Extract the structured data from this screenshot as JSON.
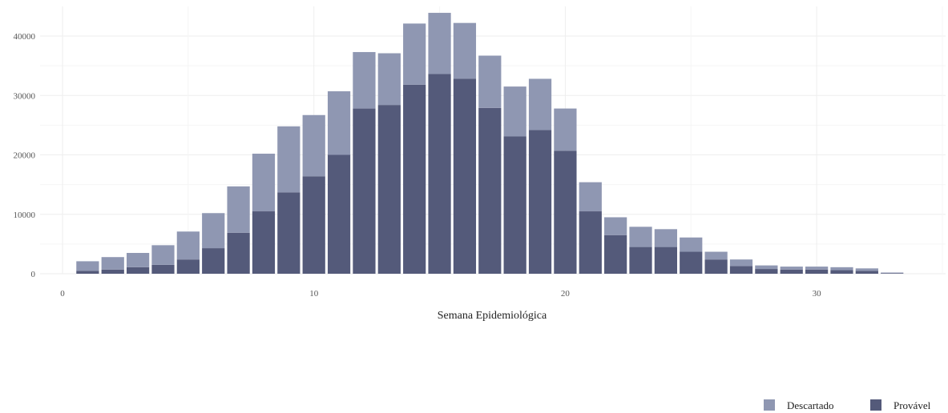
{
  "colors": {
    "descartado": "#8f97b2",
    "provavel": "#545a7a",
    "grid": "#eeeeee"
  },
  "chart_data": {
    "type": "bar",
    "stacked": true,
    "title": "",
    "xlabel": "Semana Epidemiológica",
    "ylabel": "",
    "xlim": [
      0,
      35
    ],
    "ylim": [
      0,
      44000
    ],
    "x_ticks": [
      0,
      10,
      20,
      30
    ],
    "y_ticks": [
      0,
      10000,
      20000,
      30000,
      40000
    ],
    "grid": true,
    "legend_position": "bottom-right",
    "x": [
      1,
      2,
      3,
      4,
      5,
      6,
      7,
      8,
      9,
      10,
      11,
      12,
      13,
      14,
      15,
      16,
      17,
      18,
      19,
      20,
      21,
      22,
      23,
      24,
      25,
      26,
      27,
      28,
      29,
      30,
      31,
      32,
      33
    ],
    "series": [
      {
        "name": "Provável",
        "values": [
          500,
          700,
          1100,
          1500,
          2400,
          4300,
          6900,
          10500,
          13700,
          16400,
          20000,
          27800,
          28400,
          31800,
          33600,
          32800,
          27900,
          23100,
          24200,
          20700,
          10500,
          6500,
          4500,
          4500,
          3700,
          2400,
          1300,
          800,
          700,
          700,
          600,
          500,
          100
        ]
      },
      {
        "name": "Descartado",
        "values": [
          1600,
          2100,
          2400,
          3300,
          4700,
          5900,
          7800,
          9700,
          11100,
          10300,
          10700,
          9500,
          8700,
          10300,
          10300,
          9400,
          8800,
          8400,
          8600,
          7100,
          4900,
          3000,
          3400,
          3000,
          2400,
          1300,
          1100,
          600,
          500,
          500,
          500,
          400,
          100
        ]
      }
    ]
  }
}
